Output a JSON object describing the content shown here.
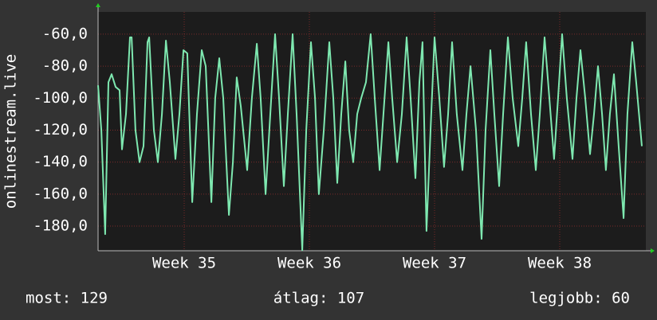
{
  "chart_data": {
    "type": "line",
    "y_label": "onlinestream.live",
    "xlim": [
      34.312,
      38.688
    ],
    "xticks": [
      {
        "value": 35,
        "label": "Week 35"
      },
      {
        "value": 36,
        "label": "Week 36"
      },
      {
        "value": 37,
        "label": "Week 37"
      },
      {
        "value": 38,
        "label": "Week 38"
      }
    ],
    "ylim": [
      -195.4,
      -46.1
    ],
    "yticks": [
      {
        "value": -60,
        "label": "-60,0"
      },
      {
        "value": -80,
        "label": "-80,0"
      },
      {
        "value": -100,
        "label": "-100,0"
      },
      {
        "value": -120,
        "label": "-120,0"
      },
      {
        "value": -140,
        "label": "-140,0"
      },
      {
        "value": -160,
        "label": "-160,0"
      },
      {
        "value": -180,
        "label": "-180,0"
      }
    ],
    "grid": true,
    "stats": [
      "most: 129",
      "átlag: 107",
      "legjobb: 60"
    ],
    "series": [
      {
        "color": "#7ee8b0",
        "x": [
          34.312,
          34.338,
          34.369,
          34.395,
          34.42,
          34.452,
          34.484,
          34.503,
          34.535,
          34.567,
          34.58,
          34.611,
          34.643,
          34.675,
          34.707,
          34.72,
          34.758,
          34.79,
          34.822,
          34.854,
          34.885,
          34.93,
          34.962,
          34.994,
          35.025,
          35.064,
          35.102,
          35.14,
          35.172,
          35.217,
          35.248,
          35.28,
          35.312,
          35.357,
          35.389,
          35.42,
          35.452,
          35.503,
          35.541,
          35.58,
          35.611,
          35.65,
          35.688,
          35.726,
          35.758,
          35.796,
          35.828,
          35.866,
          35.898,
          35.943,
          35.975,
          36.013,
          36.045,
          36.076,
          36.115,
          36.159,
          36.191,
          36.223,
          36.255,
          36.287,
          36.318,
          36.35,
          36.382,
          36.414,
          36.452,
          36.49,
          36.522,
          36.561,
          36.592,
          36.631,
          36.662,
          36.701,
          36.739,
          36.777,
          36.809,
          36.847,
          36.879,
          36.904,
          36.936,
          36.968,
          37.0,
          37.038,
          37.076,
          37.108,
          37.14,
          37.178,
          37.223,
          37.255,
          37.287,
          37.331,
          37.376,
          37.408,
          37.446,
          37.478,
          37.516,
          37.548,
          37.586,
          37.624,
          37.669,
          37.701,
          37.732,
          37.771,
          37.809,
          37.841,
          37.879,
          37.917,
          37.955,
          37.987,
          38.019,
          38.057,
          38.102,
          38.134,
          38.166,
          38.204,
          38.242,
          38.274,
          38.306,
          38.338,
          38.369,
          38.401,
          38.433,
          38.471,
          38.51,
          38.541,
          38.58,
          38.611,
          38.656
        ],
        "values": [
          -92,
          -120,
          -185,
          -90,
          -85,
          -93,
          -95,
          -132,
          -110,
          -62,
          -62,
          -120,
          -140,
          -130,
          -65,
          -62,
          -120,
          -140,
          -110,
          -64,
          -90,
          -138,
          -110,
          -70,
          -72,
          -165,
          -110,
          -70,
          -80,
          -165,
          -100,
          -75,
          -100,
          -173,
          -140,
          -87,
          -105,
          -145,
          -100,
          -66,
          -100,
          -160,
          -110,
          -60,
          -100,
          -155,
          -110,
          -60,
          -110,
          -195,
          -120,
          -65,
          -100,
          -160,
          -120,
          -65,
          -100,
          -153,
          -110,
          -77,
          -120,
          -140,
          -110,
          -100,
          -90,
          -60,
          -100,
          -145,
          -110,
          -65,
          -100,
          -140,
          -110,
          -62,
          -100,
          -150,
          -90,
          -65,
          -183,
          -120,
          -62,
          -100,
          -143,
          -110,
          -65,
          -110,
          -145,
          -110,
          -80,
          -120,
          -188,
          -120,
          -70,
          -110,
          -155,
          -110,
          -62,
          -100,
          -130,
          -100,
          -65,
          -110,
          -145,
          -110,
          -62,
          -100,
          -138,
          -100,
          -60,
          -100,
          -138,
          -100,
          -70,
          -100,
          -135,
          -110,
          -80,
          -110,
          -145,
          -110,
          -85,
          -130,
          -175,
          -110,
          -65,
          -90,
          -130
        ]
      }
    ]
  }
}
